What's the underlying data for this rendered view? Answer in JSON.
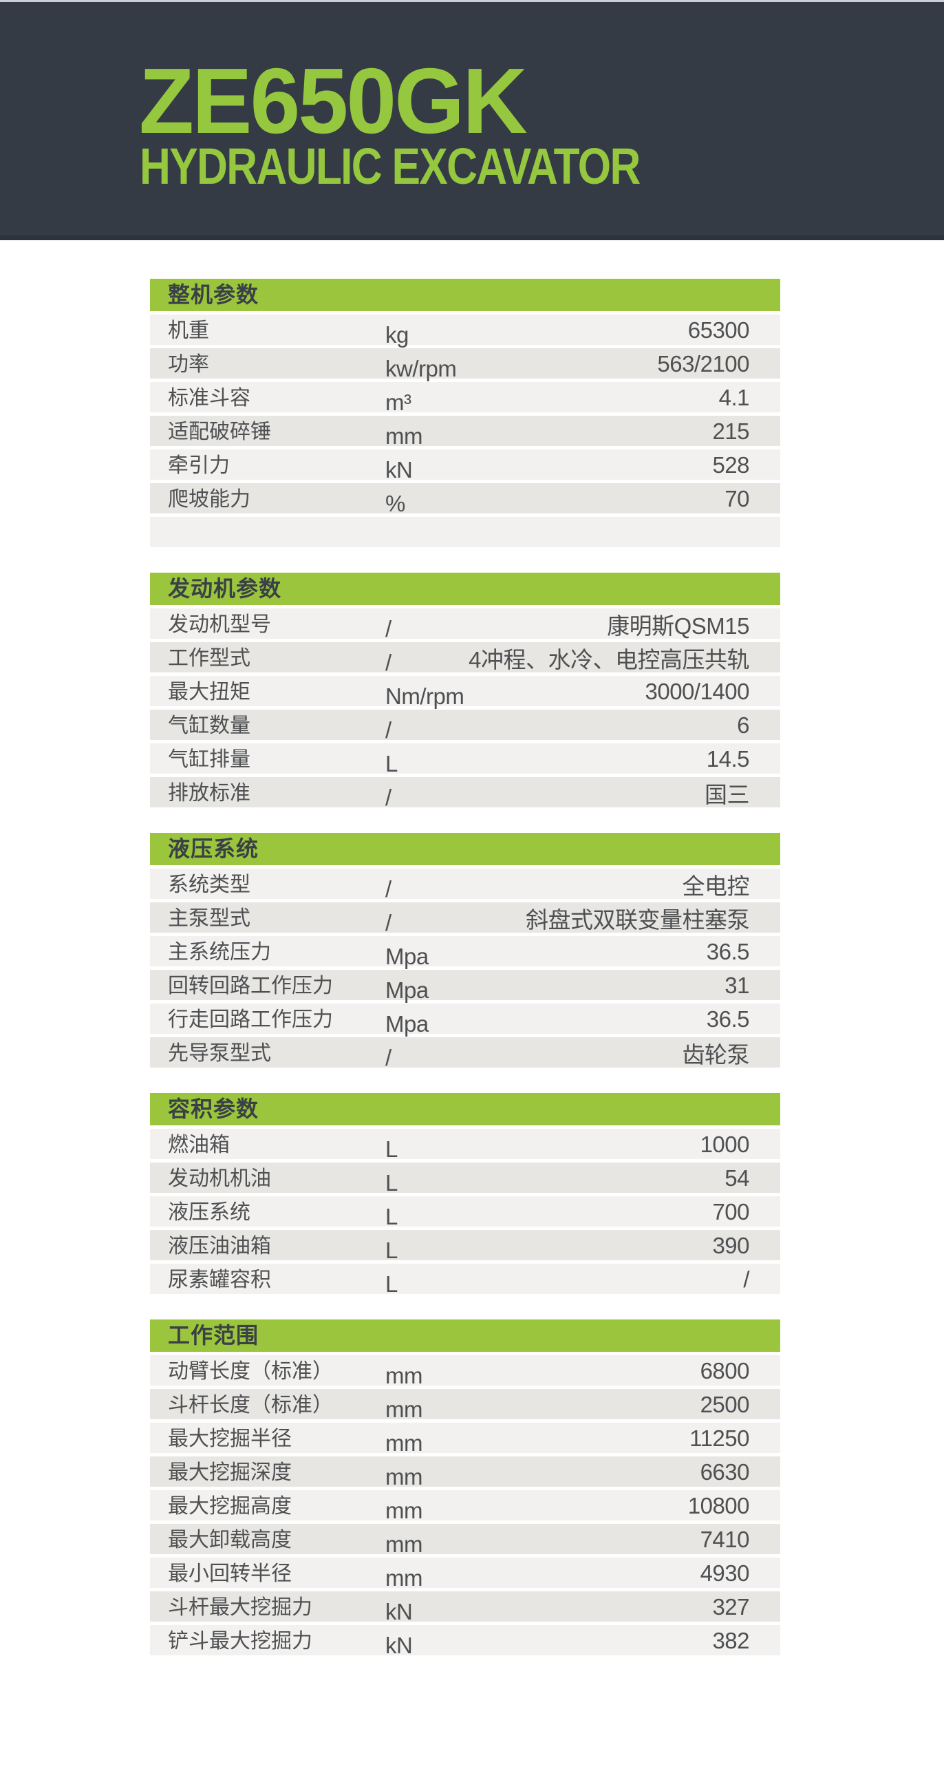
{
  "header": {
    "model": "ZE650GK",
    "subtitle": "HYDRAULIC EXCAVATOR"
  },
  "colors": {
    "hero_background": "#353b45",
    "accent_green": "#9bc53d",
    "title_green": "#95c83e",
    "row_light": "#f2f1ef",
    "row_dark": "#e7e6e3",
    "text_dark": "#4f5052"
  },
  "tables": [
    {
      "title": "整机参数",
      "trailing_empty_row": true,
      "rows": [
        {
          "label": "机重",
          "unit": "kg",
          "value": "65300"
        },
        {
          "label": "功率",
          "unit": "kw/rpm",
          "value": "563/2100"
        },
        {
          "label": "标准斗容",
          "unit": "m³",
          "value": "4.1"
        },
        {
          "label": "适配破碎锤",
          "unit": "mm",
          "value": "215"
        },
        {
          "label": "牵引力",
          "unit": "kN",
          "value": "528"
        },
        {
          "label": "爬坡能力",
          "unit": "%",
          "value": "70"
        }
      ]
    },
    {
      "title": "发动机参数",
      "trailing_empty_row": false,
      "rows": [
        {
          "label": "发动机型号",
          "unit": "/",
          "value": "康明斯QSM15"
        },
        {
          "label": "工作型式",
          "unit": "/",
          "value": "4冲程、水冷、电控高压共轨"
        },
        {
          "label": "最大扭矩",
          "unit": "Nm/rpm",
          "value": "3000/1400"
        },
        {
          "label": "气缸数量",
          "unit": "/",
          "value": "6"
        },
        {
          "label": "气缸排量",
          "unit": "L",
          "value": "14.5"
        },
        {
          "label": "排放标准",
          "unit": "/",
          "value": "国三"
        }
      ]
    },
    {
      "title": "液压系统",
      "trailing_empty_row": false,
      "rows": [
        {
          "label": "系统类型",
          "unit": "/",
          "value": "全电控"
        },
        {
          "label": "主泵型式",
          "unit": "/",
          "value": "斜盘式双联变量柱塞泵"
        },
        {
          "label": "主系统压力",
          "unit": "Mpa",
          "value": "36.5"
        },
        {
          "label": "回转回路工作压力",
          "unit": "Mpa",
          "value": "31"
        },
        {
          "label": "行走回路工作压力",
          "unit": "Mpa",
          "value": "36.5"
        },
        {
          "label": "先导泵型式",
          "unit": "/",
          "value": "齿轮泵"
        }
      ]
    },
    {
      "title": "容积参数",
      "trailing_empty_row": false,
      "rows": [
        {
          "label": "燃油箱",
          "unit": "L",
          "value": "1000"
        },
        {
          "label": "发动机机油",
          "unit": "L",
          "value": "54"
        },
        {
          "label": "液压系统",
          "unit": "L",
          "value": "700"
        },
        {
          "label": "液压油油箱",
          "unit": "L",
          "value": "390"
        },
        {
          "label": "尿素罐容积",
          "unit": "L",
          "value": "/"
        }
      ]
    },
    {
      "title": "工作范围",
      "trailing_empty_row": false,
      "rows": [
        {
          "label": "动臂长度（标准）",
          "unit": "mm",
          "value": "6800"
        },
        {
          "label": "斗杆长度（标准）",
          "unit": "mm",
          "value": "2500"
        },
        {
          "label": "最大挖掘半径",
          "unit": "mm",
          "value": "11250"
        },
        {
          "label": "最大挖掘深度",
          "unit": "mm",
          "value": "6630"
        },
        {
          "label": "最大挖掘高度",
          "unit": "mm",
          "value": "10800"
        },
        {
          "label": "最大卸载高度",
          "unit": "mm",
          "value": "7410"
        },
        {
          "label": "最小回转半径",
          "unit": "mm",
          "value": "4930"
        },
        {
          "label": "斗杆最大挖掘力",
          "unit": "kN",
          "value": "327"
        },
        {
          "label": "铲斗最大挖掘力",
          "unit": "kN",
          "value": "382"
        }
      ]
    }
  ]
}
